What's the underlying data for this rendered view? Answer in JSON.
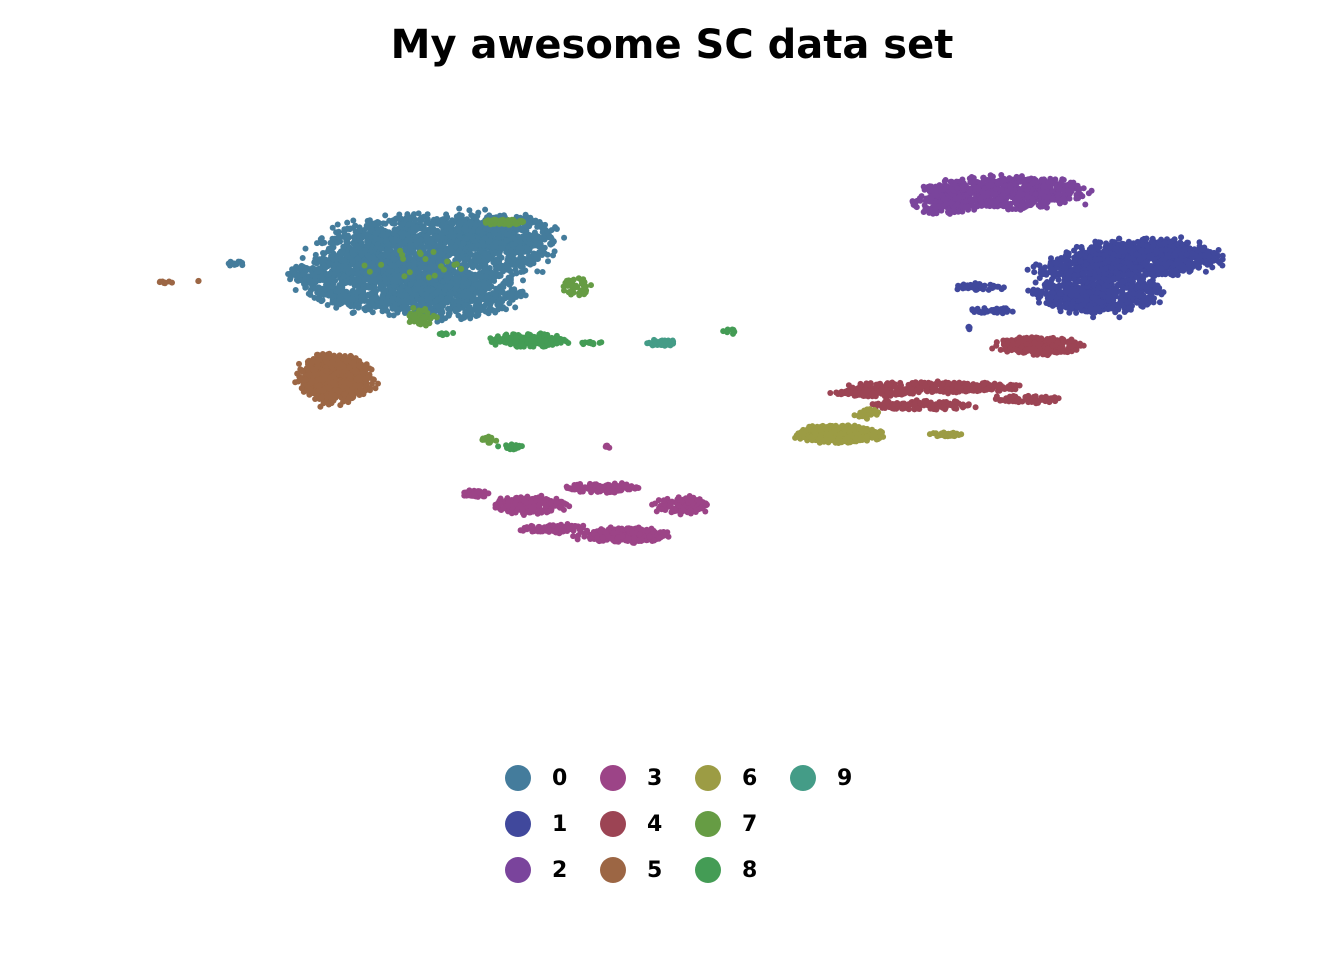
{
  "title": "My awesome SC data set",
  "chart_data": {
    "type": "scatter",
    "title": "My awesome SC data set",
    "xlabel": "",
    "ylabel": "",
    "axes_visible": false,
    "grid": false,
    "legend_position": "bottom",
    "legend_columns": 4,
    "point_size": "small",
    "xlim": [
      0,
      100
    ],
    "ylim": [
      0,
      100
    ],
    "series": [
      {
        "name": "0",
        "color": "#447c9c",
        "blobs": [
          {
            "cx": 30,
            "cy": 76,
            "rx": 9,
            "ry": 6,
            "n": 1600
          },
          {
            "cx": 25,
            "cy": 71,
            "rx": 6,
            "ry": 5,
            "n": 900
          },
          {
            "cx": 31,
            "cy": 68,
            "rx": 5,
            "ry": 3.5,
            "n": 450
          },
          {
            "cx": 36,
            "cy": 79,
            "rx": 4,
            "ry": 3,
            "n": 300
          },
          {
            "cx": 13,
            "cy": 74,
            "rx": 1,
            "ry": 0.4,
            "n": 12
          },
          {
            "cx": 36,
            "cy": 69,
            "rx": 1.5,
            "ry": 1.5,
            "n": 40
          },
          {
            "cx": 19,
            "cy": 72,
            "rx": 1.5,
            "ry": 1.5,
            "n": 60
          }
        ]
      },
      {
        "name": "1",
        "color": "#40489c",
        "blobs": [
          {
            "cx": 90,
            "cy": 75,
            "rx": 6,
            "ry": 3,
            "n": 800
          },
          {
            "cx": 86,
            "cy": 69,
            "rx": 5,
            "ry": 3.5,
            "n": 600
          },
          {
            "cx": 85,
            "cy": 73,
            "rx": 4,
            "ry": 2,
            "n": 250
          },
          {
            "cx": 76,
            "cy": 70,
            "rx": 2,
            "ry": 0.6,
            "n": 40
          },
          {
            "cx": 77,
            "cy": 66,
            "rx": 1.5,
            "ry": 0.6,
            "n": 35
          },
          {
            "cx": 75,
            "cy": 63,
            "rx": 0.3,
            "ry": 0.4,
            "n": 4
          }
        ]
      },
      {
        "name": "2",
        "color": "#7a449c",
        "blobs": [
          {
            "cx": 78,
            "cy": 86,
            "rx": 6.5,
            "ry": 2.6,
            "n": 700
          },
          {
            "cx": 73,
            "cy": 84,
            "rx": 2.5,
            "ry": 1.6,
            "n": 150
          }
        ]
      },
      {
        "name": "3",
        "color": "#9c4487",
        "blobs": [
          {
            "cx": 38,
            "cy": 33,
            "rx": 3,
            "ry": 1.4,
            "n": 220
          },
          {
            "cx": 46,
            "cy": 28,
            "rx": 3.5,
            "ry": 1.2,
            "n": 260
          },
          {
            "cx": 51,
            "cy": 33,
            "rx": 2.2,
            "ry": 1.3,
            "n": 120
          },
          {
            "cx": 44,
            "cy": 36,
            "rx": 3,
            "ry": 0.8,
            "n": 100
          },
          {
            "cx": 40,
            "cy": 29,
            "rx": 2.5,
            "ry": 0.7,
            "n": 80
          },
          {
            "cx": 33.5,
            "cy": 35,
            "rx": 1,
            "ry": 0.6,
            "n": 50
          },
          {
            "cx": 44.5,
            "cy": 43,
            "rx": 0.4,
            "ry": 0.3,
            "n": 6
          }
        ]
      },
      {
        "name": "4",
        "color": "#9c4454",
        "blobs": [
          {
            "cx": 81,
            "cy": 60,
            "rx": 3.5,
            "ry": 1.4,
            "n": 250
          },
          {
            "cx": 72,
            "cy": 53,
            "rx": 7,
            "ry": 0.9,
            "n": 260
          },
          {
            "cx": 67,
            "cy": 52,
            "rx": 3,
            "ry": 0.6,
            "n": 120
          },
          {
            "cx": 71,
            "cy": 50,
            "rx": 4,
            "ry": 0.8,
            "n": 120
          },
          {
            "cx": 80,
            "cy": 51,
            "rx": 3,
            "ry": 0.6,
            "n": 60
          }
        ]
      },
      {
        "name": "5",
        "color": "#9c6644",
        "blobs": [
          {
            "cx": 21.5,
            "cy": 54.5,
            "rx": 3,
            "ry": 4,
            "n": 650
          },
          {
            "cx": 7.2,
            "cy": 70.8,
            "rx": 0.6,
            "ry": 0.2,
            "n": 8
          },
          {
            "cx": 10,
            "cy": 71,
            "rx": 0.2,
            "ry": 0.2,
            "n": 2
          }
        ]
      },
      {
        "name": "6",
        "color": "#9c9c44",
        "blobs": [
          {
            "cx": 64,
            "cy": 45,
            "rx": 3.5,
            "ry": 1.4,
            "n": 420
          },
          {
            "cx": 73,
            "cy": 45,
            "rx": 1.4,
            "ry": 0.4,
            "n": 30
          },
          {
            "cx": 66.5,
            "cy": 48.5,
            "rx": 1,
            "ry": 0.8,
            "n": 30
          }
        ]
      },
      {
        "name": "7",
        "color": "#669c44",
        "blobs": [
          {
            "cx": 36,
            "cy": 81,
            "rx": 1.6,
            "ry": 0.5,
            "n": 60
          },
          {
            "cx": 42,
            "cy": 70,
            "rx": 1.3,
            "ry": 1.4,
            "n": 40
          },
          {
            "cx": 29,
            "cy": 65,
            "rx": 1.2,
            "ry": 1.6,
            "n": 40
          },
          {
            "cx": 34.5,
            "cy": 44,
            "rx": 0.6,
            "ry": 0.6,
            "n": 15
          },
          {
            "cx": 28,
            "cy": 74,
            "rx": 4,
            "ry": 3,
            "n": 20
          }
        ]
      },
      {
        "name": "8",
        "color": "#449c55",
        "blobs": [
          {
            "cx": 38,
            "cy": 61,
            "rx": 3,
            "ry": 1.1,
            "n": 160
          },
          {
            "cx": 43,
            "cy": 60.5,
            "rx": 1,
            "ry": 0.3,
            "n": 12
          },
          {
            "cx": 55,
            "cy": 62.5,
            "rx": 0.6,
            "ry": 0.5,
            "n": 10
          },
          {
            "cx": 36.5,
            "cy": 43,
            "rx": 1,
            "ry": 0.5,
            "n": 20
          },
          {
            "cx": 31,
            "cy": 62,
            "rx": 1,
            "ry": 0.3,
            "n": 6
          }
        ]
      },
      {
        "name": "9",
        "color": "#449c87",
        "blobs": [
          {
            "cx": 49,
            "cy": 60.5,
            "rx": 1.4,
            "ry": 0.5,
            "n": 40
          }
        ]
      }
    ]
  }
}
